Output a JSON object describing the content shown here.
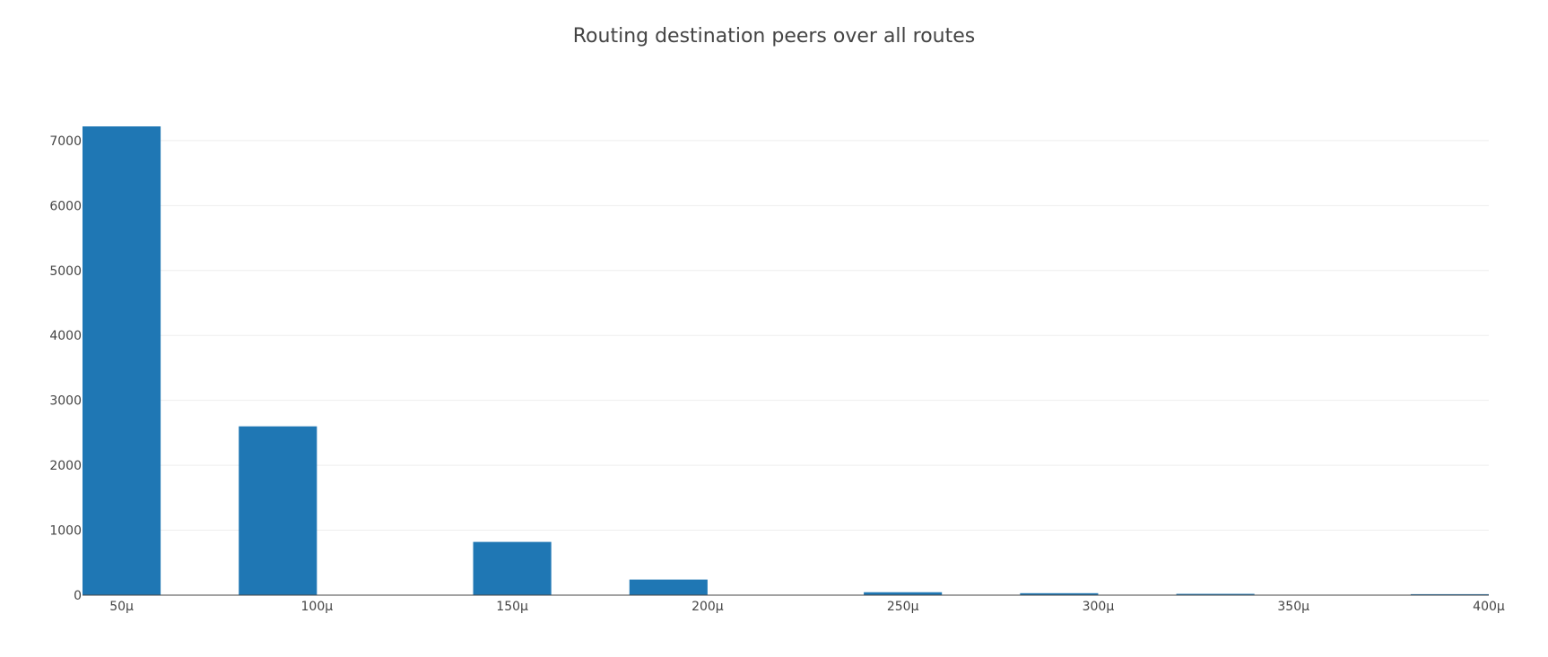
{
  "chart_data": {
    "type": "bar",
    "title": "Routing destination peers over all routes",
    "xlabel": "",
    "ylabel": "",
    "bars": [
      {
        "x_from": 40,
        "x_to": 60,
        "value": 7220
      },
      {
        "x_from": 80,
        "x_to": 100,
        "value": 2600
      },
      {
        "x_from": 140,
        "x_to": 160,
        "value": 820
      },
      {
        "x_from": 180,
        "x_to": 200,
        "value": 240
      },
      {
        "x_from": 240,
        "x_to": 260,
        "value": 45
      },
      {
        "x_from": 280,
        "x_to": 300,
        "value": 30
      },
      {
        "x_from": 320,
        "x_to": 340,
        "value": 20
      },
      {
        "x_from": 380,
        "x_to": 400,
        "value": 15
      }
    ],
    "xlim": [
      40,
      400
    ],
    "ylim": [
      0,
      7220
    ],
    "x_ticks": [
      {
        "value": 50,
        "label": "50μ"
      },
      {
        "value": 100,
        "label": "100μ"
      },
      {
        "value": 150,
        "label": "150μ"
      },
      {
        "value": 200,
        "label": "200μ"
      },
      {
        "value": 250,
        "label": "250μ"
      },
      {
        "value": 300,
        "label": "300μ"
      },
      {
        "value": 350,
        "label": "350μ"
      },
      {
        "value": 400,
        "label": "400μ"
      }
    ],
    "y_ticks": [
      {
        "value": 0,
        "label": "0"
      },
      {
        "value": 1000,
        "label": "1000"
      },
      {
        "value": 2000,
        "label": "2000"
      },
      {
        "value": 3000,
        "label": "3000"
      },
      {
        "value": 4000,
        "label": "4000"
      },
      {
        "value": 5000,
        "label": "5000"
      },
      {
        "value": 6000,
        "label": "6000"
      },
      {
        "value": 7000,
        "label": "7000"
      }
    ],
    "bar_color": "#1f77b4",
    "grid": true,
    "gridline_color": "#eeeeee",
    "axis_color": "#444444"
  }
}
